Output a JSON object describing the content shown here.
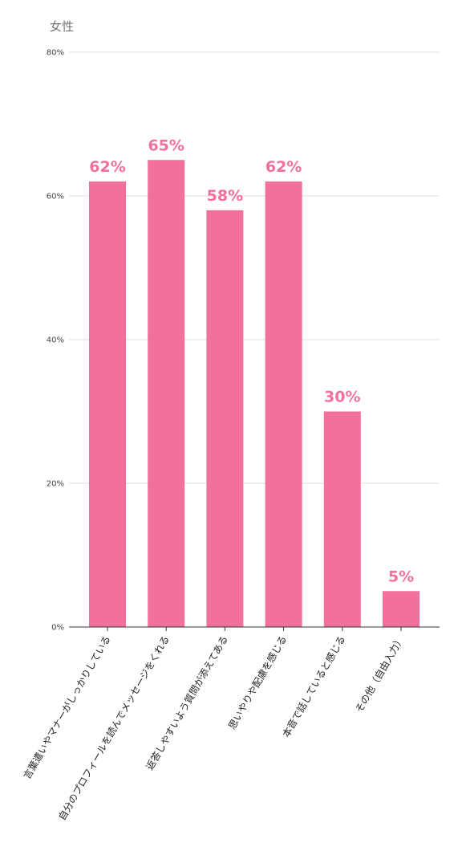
{
  "chart_data": {
    "type": "bar",
    "title": "女性",
    "categories": [
      "言葉遣いやマナーがしっかりしている",
      "自分のプロフィールを読んでメッセージをくれる",
      "返答しやすいよう質問が添えてある",
      "思いやりや配慮を感じる",
      "本音で話していると感じる",
      "その他（自由入力）"
    ],
    "values": [
      62,
      65,
      58,
      62,
      30,
      5
    ],
    "value_labels": [
      "62%",
      "65%",
      "58%",
      "62%",
      "30%",
      "5%"
    ],
    "yticks": [
      0,
      20,
      40,
      60,
      80
    ],
    "ytick_labels": [
      "0%",
      "20%",
      "40%",
      "60%",
      "80%"
    ],
    "ylim": [
      0,
      80
    ],
    "grid": true,
    "xlabel": "",
    "ylabel": "",
    "colors": {
      "bar": "#f2709e",
      "label": "#f2709e"
    }
  }
}
